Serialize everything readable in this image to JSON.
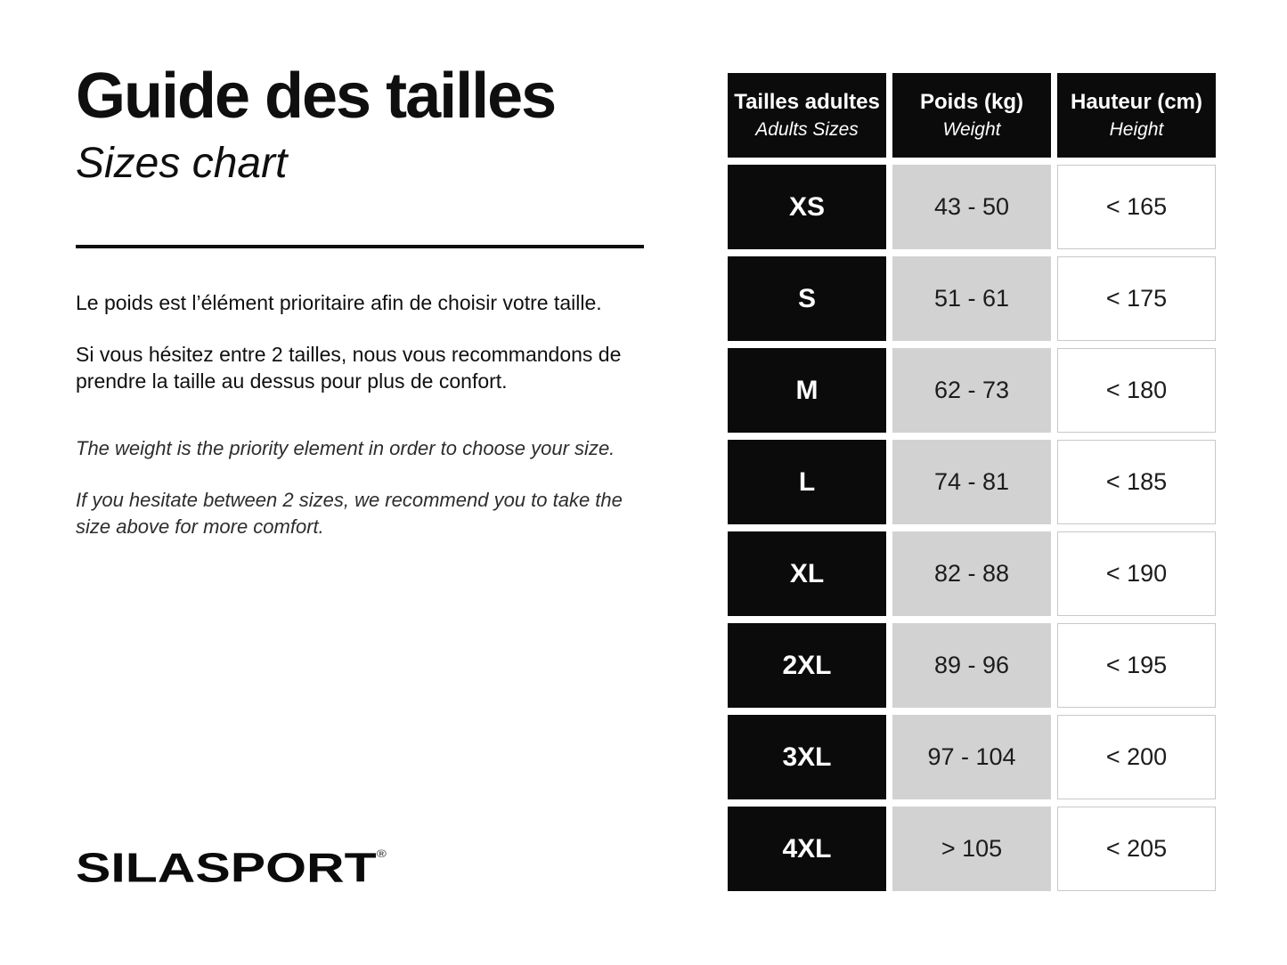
{
  "header": {
    "title_fr": "Guide des tailles",
    "subtitle_en": "Sizes chart"
  },
  "intro": {
    "fr": [
      "Le poids est l’élément prioritaire afin de choisir votre taille.",
      "Si vous hésitez entre 2 tailles, nous vous recommandons de prendre la taille au dessus pour plus de confort."
    ],
    "en": [
      "The weight is the priority element in order to choose your size.",
      "If you hesitate between 2 sizes, we recommend you to take the size above for more comfort."
    ]
  },
  "brand": {
    "name": "SILASPORT",
    "mark": "®"
  },
  "chart_data": {
    "type": "table",
    "title": "Guide des tailles / Sizes chart",
    "columns": [
      {
        "label_fr": "Tailles adultes",
        "label_en": "Adults Sizes"
      },
      {
        "label_fr": "Poids (kg)",
        "label_en": "Weight"
      },
      {
        "label_fr": "Hauteur (cm)",
        "label_en": "Height"
      }
    ],
    "rows": [
      {
        "size": "XS",
        "weight": "43 - 50",
        "height": "< 165"
      },
      {
        "size": "S",
        "weight": "51 - 61",
        "height": "< 175"
      },
      {
        "size": "M",
        "weight": "62 - 73",
        "height": "< 180"
      },
      {
        "size": "L",
        "weight": "74 - 81",
        "height": "< 185"
      },
      {
        "size": "XL",
        "weight": "82 - 88",
        "height": "< 190"
      },
      {
        "size": "2XL",
        "weight": "89 - 96",
        "height": "< 195"
      },
      {
        "size": "3XL",
        "weight": "97 - 104",
        "height": "< 200"
      },
      {
        "size": "4XL",
        "weight": "> 105",
        "height": "< 205"
      }
    ]
  },
  "colors": {
    "paper": "#ffffff",
    "ink": "#0f0f0f",
    "cell_black": "#0b0b0b",
    "cell_gray": "#d2d2d2",
    "cell_border": "#c8c8c8"
  }
}
